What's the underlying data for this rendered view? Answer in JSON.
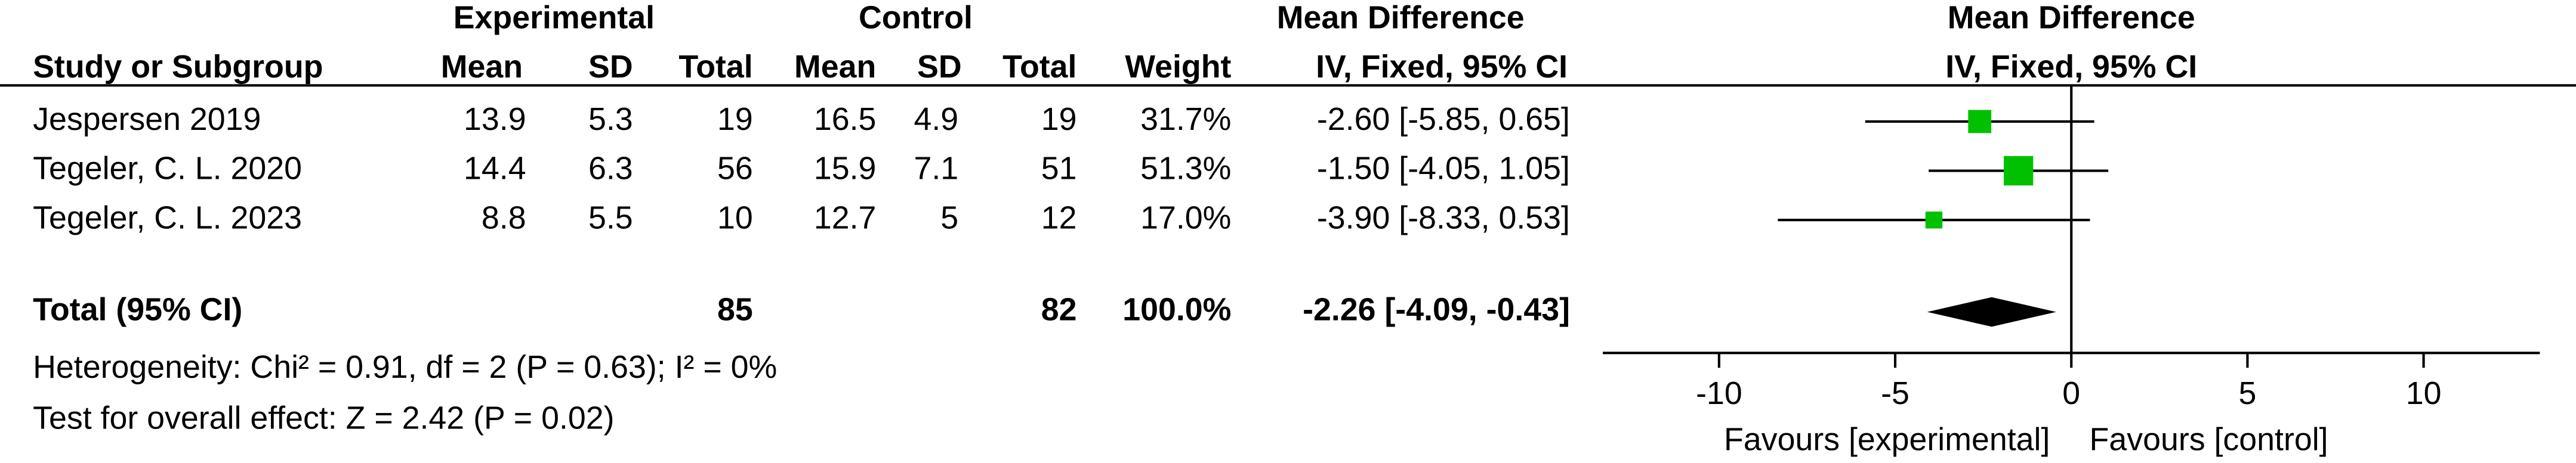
{
  "chart_data": {
    "type": "forest",
    "group_headers": {
      "experimental": "Experimental",
      "control": "Control",
      "effect": "Mean Difference",
      "plot": "Mean Difference"
    },
    "columns": [
      "Study or Subgroup",
      "Mean",
      "SD",
      "Total",
      "Mean",
      "SD",
      "Total",
      "Weight",
      "IV, Fixed, 95% CI"
    ],
    "plot_subheader": "IV, Fixed, 95% CI",
    "rows": [
      [
        "Jespersen 2019",
        "13.9",
        "5.3",
        "19",
        "16.5",
        "4.9",
        "19",
        "31.7%",
        "-2.60 [-5.85, 0.65]"
      ],
      [
        "Tegeler, C. L. 2020",
        "14.4",
        "6.3",
        "56",
        "15.9",
        "7.1",
        "51",
        "51.3%",
        "-1.50 [-4.05, 1.05]"
      ],
      [
        "Tegeler, C. L. 2023",
        "8.8",
        "5.5",
        "10",
        "12.7",
        "5",
        "12",
        "17.0%",
        "-3.90 [-8.33, 0.53]"
      ]
    ],
    "total_row": [
      "Total (95% CI)",
      "85",
      "82",
      "100.0%",
      "-2.26 [-4.09, -0.43]"
    ],
    "values": [
      -2.6,
      -1.5,
      -3.9
    ],
    "ci_low": [
      -5.85,
      -4.05,
      -8.33
    ],
    "ci_high": [
      0.65,
      1.05,
      0.53
    ],
    "weights": [
      31.7,
      51.3,
      17.0
    ],
    "total": {
      "value": -2.26,
      "ci_low": -4.09,
      "ci_high": -0.43
    },
    "color": "#00c000",
    "xlim": [
      -13.3,
      13.3
    ],
    "xticks": [
      -10,
      -5,
      0,
      5,
      10
    ],
    "xlabel_left": "Favours [experimental]",
    "xlabel_right": "Favours [control]",
    "notes": [
      "Heterogeneity: Chi² = 0.91, df = 2 (P = 0.63); I² = 0%",
      "Test for overall effect: Z = 2.42 (P = 0.02)"
    ]
  }
}
